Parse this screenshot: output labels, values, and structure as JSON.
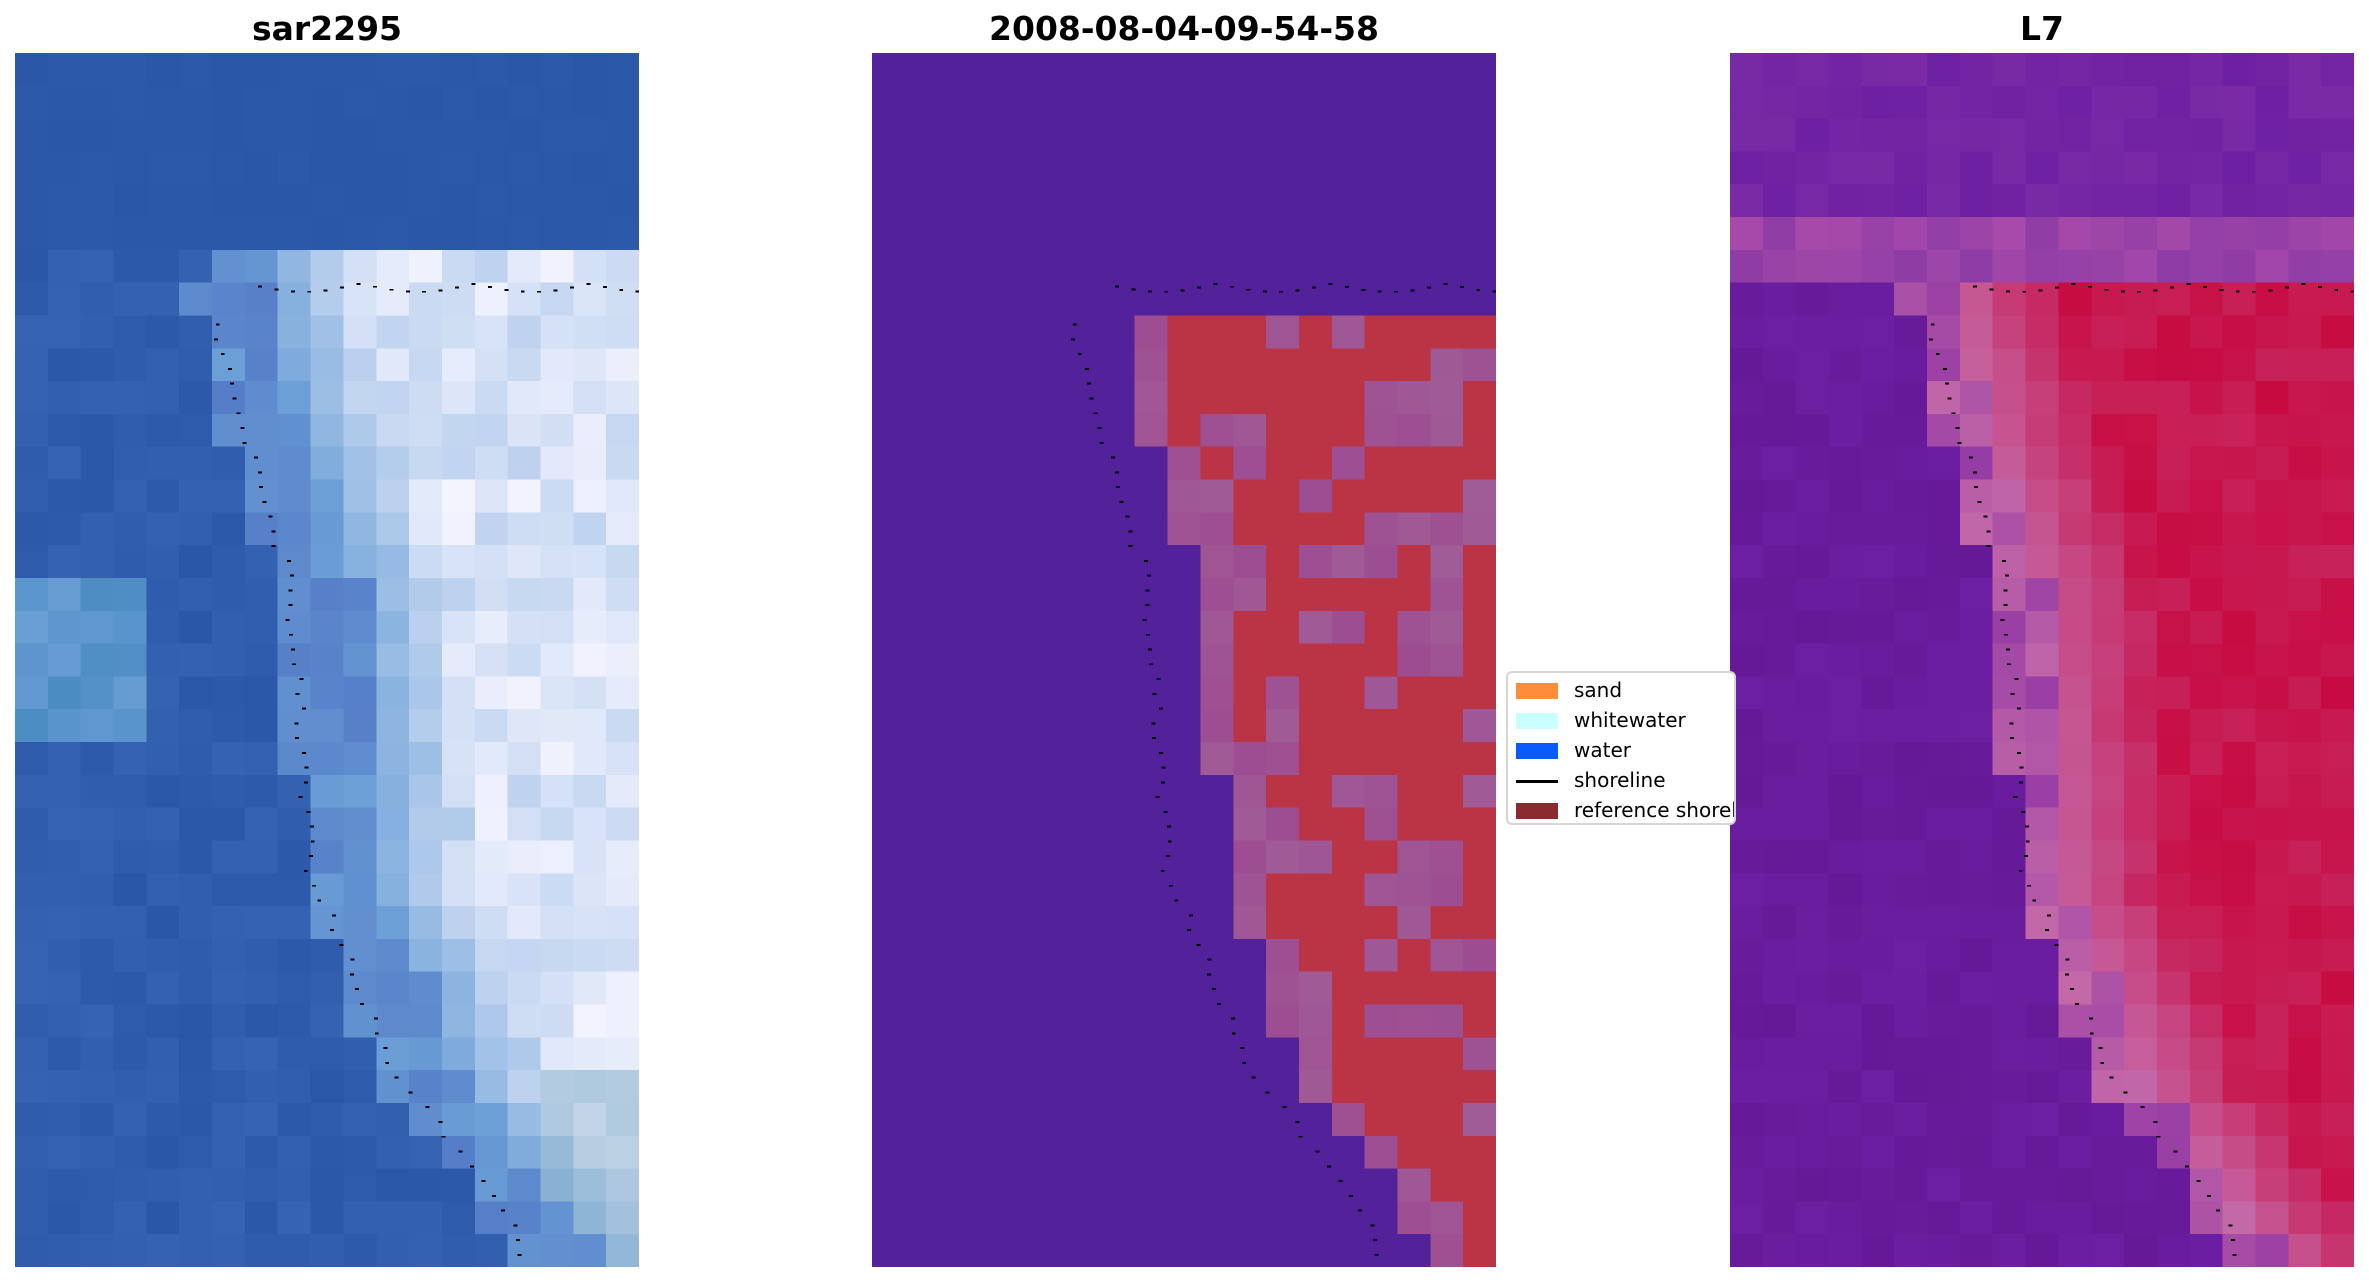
{
  "panels": [
    {
      "title": "sar2295",
      "kind": "rgb-image"
    },
    {
      "title": "2008-08-04-09-54-58",
      "kind": "classification-overlay"
    },
    {
      "title": "L7",
      "kind": "index-image"
    }
  ],
  "legend": {
    "items": [
      {
        "label": "sand",
        "color": "#ff8c3a",
        "type": "patch"
      },
      {
        "label": "whitewater",
        "color": "#c8ffff",
        "type": "patch"
      },
      {
        "label": "water",
        "color": "#0a5bff",
        "type": "patch"
      },
      {
        "label": "shoreline",
        "color": "#000000",
        "type": "line"
      },
      {
        "label": "reference shoreline buffer",
        "color": "#8b2a2f",
        "type": "patch"
      }
    ]
  },
  "colors": {
    "rgb_water": "#2a57a8",
    "rgb_foam": "#f4f4ff",
    "classified_background": "#53219a",
    "classified_buffer": "#9d4c92",
    "classified_sand": "#bb3446",
    "index_water": "#6d1fa3",
    "index_transition": "#c56aa8",
    "index_land": "#c70a40",
    "shoreline_points": "#000000"
  }
}
